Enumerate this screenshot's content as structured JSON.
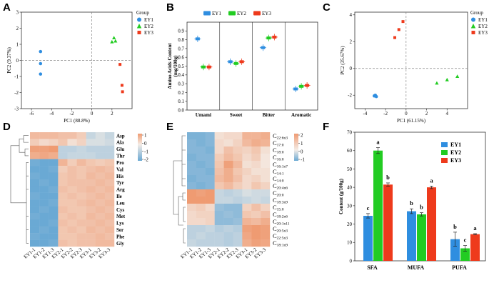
{
  "figure": {
    "panels": [
      "A",
      "B",
      "C",
      "D",
      "E",
      "F"
    ]
  },
  "colors": {
    "EY1": "#2f8ee0",
    "EY2": "#22cc22",
    "EY3": "#ee3a1c",
    "heat_low": "#6aa9d4",
    "heat_mid": "#f4ece6",
    "heat_high": "#ef9b72"
  },
  "chart_data": [
    {
      "id": "A",
      "type": "scatter",
      "xlabel": "PC1 (88.8%)",
      "ylabel": "PC2 (9.37%)",
      "xlim": [
        -7,
        4
      ],
      "ylim": [
        -3,
        3
      ],
      "xticks": [
        -6,
        -4,
        -2,
        0,
        2
      ],
      "yticks": [
        -3,
        -2,
        -1,
        0,
        1,
        2,
        3
      ],
      "legend_title": "Group",
      "series": [
        {
          "name": "EY1",
          "marker": "circle",
          "points": [
            [
              -5.1,
              0.55
            ],
            [
              -5.1,
              -0.2
            ],
            [
              -5.1,
              -0.85
            ]
          ]
        },
        {
          "name": "EY2",
          "marker": "triangle",
          "points": [
            [
              2.0,
              1.15
            ],
            [
              2.2,
              1.4
            ],
            [
              2.35,
              1.2
            ]
          ]
        },
        {
          "name": "EY3",
          "marker": "square",
          "points": [
            [
              2.8,
              -0.25
            ],
            [
              3.0,
              -1.55
            ],
            [
              3.05,
              -1.95
            ]
          ]
        }
      ]
    },
    {
      "id": "B",
      "type": "scatter",
      "ylabel": "Amino Acids Content\n(mg/100g)",
      "ylim": [
        0,
        1.0
      ],
      "yticks": [
        0.0,
        0.1,
        0.2,
        0.3,
        0.4,
        0.5,
        0.6,
        0.7,
        0.8,
        0.9
      ],
      "categories": [
        "Umami",
        "Sweet",
        "Bitter",
        "Aromatic"
      ],
      "series": [
        {
          "name": "EY1",
          "values": [
            0.81,
            0.55,
            0.71,
            0.24
          ]
        },
        {
          "name": "EY2",
          "values": [
            0.49,
            0.53,
            0.82,
            0.27
          ]
        },
        {
          "name": "EY3",
          "values": [
            0.49,
            0.55,
            0.83,
            0.28
          ]
        }
      ]
    },
    {
      "id": "C",
      "type": "scatter",
      "xlabel": "PC1 (61.15%)",
      "ylabel": "PC2 (35.67%)",
      "xlim": [
        -5,
        6
      ],
      "ylim": [
        -3,
        4.2
      ],
      "xticks": [
        -4,
        -2,
        0,
        2,
        4
      ],
      "yticks": [
        -2,
        0,
        2,
        4
      ],
      "legend_title": "Group",
      "series": [
        {
          "name": "EY1",
          "marker": "circle",
          "points": [
            [
              -3.1,
              -2.05
            ],
            [
              -2.9,
              -2.1
            ],
            [
              -3.0,
              -2.0
            ]
          ]
        },
        {
          "name": "EY2",
          "marker": "triangle",
          "points": [
            [
              3.0,
              -1.1
            ],
            [
              4.0,
              -0.85
            ],
            [
              5.0,
              -0.6
            ]
          ]
        },
        {
          "name": "EY3",
          "marker": "square",
          "points": [
            [
              -1.1,
              2.3
            ],
            [
              -0.7,
              2.9
            ],
            [
              -0.3,
              3.5
            ]
          ]
        }
      ]
    },
    {
      "id": "D",
      "type": "heatmap",
      "columns": [
        "EY1-1",
        "EY1-2",
        "EY1-3",
        "EY2-1",
        "EY2-2",
        "EY2-3",
        "EY3-1",
        "EY3-2",
        "EY3-3"
      ],
      "rows": [
        "Asp",
        "Ala",
        "Glu",
        "Thr",
        "Pro",
        "Val",
        "His",
        "Tyr",
        "Arg",
        "Ile",
        "Leu",
        "Cys",
        "Met",
        "Lys",
        "Ser",
        "Phe",
        "Gly"
      ],
      "colorbar_ticks": [
        1,
        0,
        -1,
        -2
      ],
      "values": [
        [
          0.8,
          0.8,
          0.8,
          0.7,
          0.7,
          0.5,
          -0.5,
          -0.3,
          -0.5
        ],
        [
          0.5,
          0.3,
          0.4,
          0.6,
          0.2,
          0.4,
          -0.3,
          -0.3,
          -0.4
        ],
        [
          1.2,
          1.2,
          1.3,
          -0.6,
          -0.6,
          -0.5,
          -0.6,
          -0.6,
          -0.6
        ],
        [
          1.0,
          1.1,
          1.0,
          -0.6,
          -0.5,
          -0.5,
          -0.5,
          -0.6,
          -0.6
        ],
        [
          -1.4,
          -1.5,
          -1.5,
          0.9,
          0.5,
          0.8,
          0.6,
          0.5,
          0.6
        ],
        [
          -1.5,
          -1.5,
          -1.4,
          0.5,
          0.7,
          0.6,
          0.7,
          0.8,
          0.7
        ],
        [
          -1.4,
          -1.5,
          -1.5,
          0.6,
          0.7,
          0.6,
          0.8,
          0.7,
          0.8
        ],
        [
          -1.5,
          -1.4,
          -1.5,
          0.6,
          0.7,
          0.7,
          0.7,
          0.8,
          0.7
        ],
        [
          -1.5,
          -1.5,
          -1.4,
          0.7,
          0.6,
          0.7,
          0.8,
          0.7,
          0.8
        ],
        [
          -1.4,
          -1.5,
          -1.5,
          0.6,
          0.7,
          0.6,
          0.7,
          0.8,
          0.7
        ],
        [
          -1.5,
          -1.5,
          -1.4,
          0.6,
          0.6,
          0.7,
          0.8,
          0.7,
          0.8
        ],
        [
          -1.5,
          -1.4,
          -1.5,
          0.7,
          0.6,
          0.6,
          0.7,
          0.8,
          0.7
        ],
        [
          -1.4,
          -1.5,
          -1.5,
          0.6,
          0.7,
          0.6,
          0.8,
          0.7,
          0.8
        ],
        [
          -1.5,
          -1.5,
          -1.4,
          0.7,
          0.6,
          0.7,
          0.7,
          0.8,
          0.7
        ],
        [
          -1.5,
          -1.4,
          -1.5,
          0.6,
          0.7,
          0.6,
          0.8,
          0.7,
          0.8
        ],
        [
          -1.4,
          -1.5,
          -1.5,
          0.6,
          0.6,
          0.7,
          0.7,
          0.8,
          0.7
        ],
        [
          -1.5,
          -1.5,
          -1.4,
          0.7,
          0.6,
          0.7,
          0.7,
          0.8,
          0.8
        ]
      ]
    },
    {
      "id": "E",
      "type": "heatmap",
      "columns": [
        "EY1-1",
        "EY1-2",
        "EY1-3",
        "EY2-1",
        "EY2-2",
        "EY2-3",
        "EY3-1",
        "EY3-2",
        "EY3-3"
      ],
      "rows": [
        {
          "base": "C",
          "sub": "22:6n3"
        },
        {
          "base": "C",
          "sub": "17:0"
        },
        {
          "base": "C",
          "sub": "18:0"
        },
        {
          "base": "C",
          "sub": "16:0"
        },
        {
          "base": "C",
          "sub": "16:1n7"
        },
        {
          "base": "C",
          "sub": "14:1"
        },
        {
          "base": "C",
          "sub": "14:0"
        },
        {
          "base": "C",
          "sub": "20:4n6"
        },
        {
          "base": "C",
          "sub": "20:0"
        },
        {
          "base": "C",
          "sub": "18:3n9"
        },
        {
          "base": "C",
          "sub": "15:0"
        },
        {
          "base": "C",
          "sub": "18:2n6"
        },
        {
          "base": "C",
          "sub": "20:1n11"
        },
        {
          "base": "C",
          "sub": "20:5n3"
        },
        {
          "base": "C",
          "sub": "22:5n3"
        },
        {
          "base": "C",
          "sub": "18:1n9"
        }
      ],
      "colorbar_ticks": [
        2,
        1,
        0,
        -1
      ],
      "values": [
        [
          -1.3,
          -1.3,
          -1.2,
          0.2,
          0.3,
          0.3,
          0.9,
          0.9,
          1.0
        ],
        [
          -1.2,
          -1.3,
          -1.2,
          0.3,
          0.2,
          0.4,
          0.8,
          1.0,
          0.9
        ],
        [
          -1.2,
          -1.2,
          -1.3,
          0.3,
          0.7,
          0.5,
          0.4,
          0.6,
          0.2
        ],
        [
          -1.3,
          -1.2,
          -1.2,
          0.5,
          0.8,
          0.6,
          0.3,
          0.5,
          0.1
        ],
        [
          -1.2,
          -1.3,
          -1.2,
          0.6,
          1.2,
          0.8,
          0.2,
          0.3,
          0.1
        ],
        [
          -1.2,
          -1.2,
          -1.3,
          0.7,
          1.0,
          0.6,
          0.4,
          0.2,
          0.2
        ],
        [
          -1.3,
          -1.2,
          -1.2,
          0.8,
          1.0,
          0.7,
          0.3,
          0.4,
          0.2
        ],
        [
          -1.2,
          -1.3,
          -1.2,
          0.6,
          0.8,
          0.5,
          0.3,
          0.6,
          0.4
        ],
        [
          1.3,
          1.2,
          1.3,
          -0.5,
          -0.6,
          -0.5,
          -0.3,
          -0.4,
          -0.4
        ],
        [
          1.4,
          1.3,
          1.3,
          -0.5,
          -0.5,
          -0.6,
          -0.5,
          -0.4,
          -0.5
        ],
        [
          0.4,
          0.5,
          0.3,
          -1.0,
          -1.1,
          -1.1,
          0.4,
          0.7,
          0.4
        ],
        [
          0.3,
          0.4,
          0.4,
          -1.1,
          -1.0,
          -1.1,
          0.6,
          0.5,
          0.7
        ],
        [
          0.3,
          0.3,
          0.4,
          -1.1,
          -1.1,
          -1.0,
          0.9,
          0.8,
          1.0
        ],
        [
          -0.6,
          -0.6,
          -0.5,
          -0.7,
          -0.6,
          -0.7,
          1.2,
          1.3,
          1.2
        ],
        [
          -0.6,
          -0.5,
          -0.6,
          -0.6,
          -0.7,
          -0.6,
          1.1,
          1.3,
          1.2
        ],
        [
          -0.5,
          -0.6,
          -0.6,
          -0.6,
          -0.7,
          -0.6,
          1.0,
          1.2,
          1.1
        ]
      ]
    },
    {
      "id": "F",
      "type": "bar",
      "ylabel": "Content  (g/100g)",
      "ylim": [
        0,
        70
      ],
      "yticks": [
        0,
        10,
        20,
        30,
        40,
        50,
        60,
        70
      ],
      "categories": [
        "SFA",
        "MUFA",
        "PUFA"
      ],
      "series": [
        {
          "name": "EY1",
          "values": [
            24.5,
            27.0,
            11.8
          ],
          "errors": [
            1.2,
            1.3,
            3.8
          ],
          "letters": [
            "c",
            "b",
            "b"
          ]
        },
        {
          "name": "EY2",
          "values": [
            60.0,
            25.3,
            6.8
          ],
          "errors": [
            1.6,
            0.9,
            1.5
          ],
          "letters": [
            "a",
            "b",
            "c"
          ]
        },
        {
          "name": "EY3",
          "values": [
            41.5,
            40.0,
            14.5
          ],
          "errors": [
            0.9,
            0.7,
            0.3
          ],
          "letters": [
            "b",
            "a",
            "a"
          ]
        }
      ]
    }
  ]
}
